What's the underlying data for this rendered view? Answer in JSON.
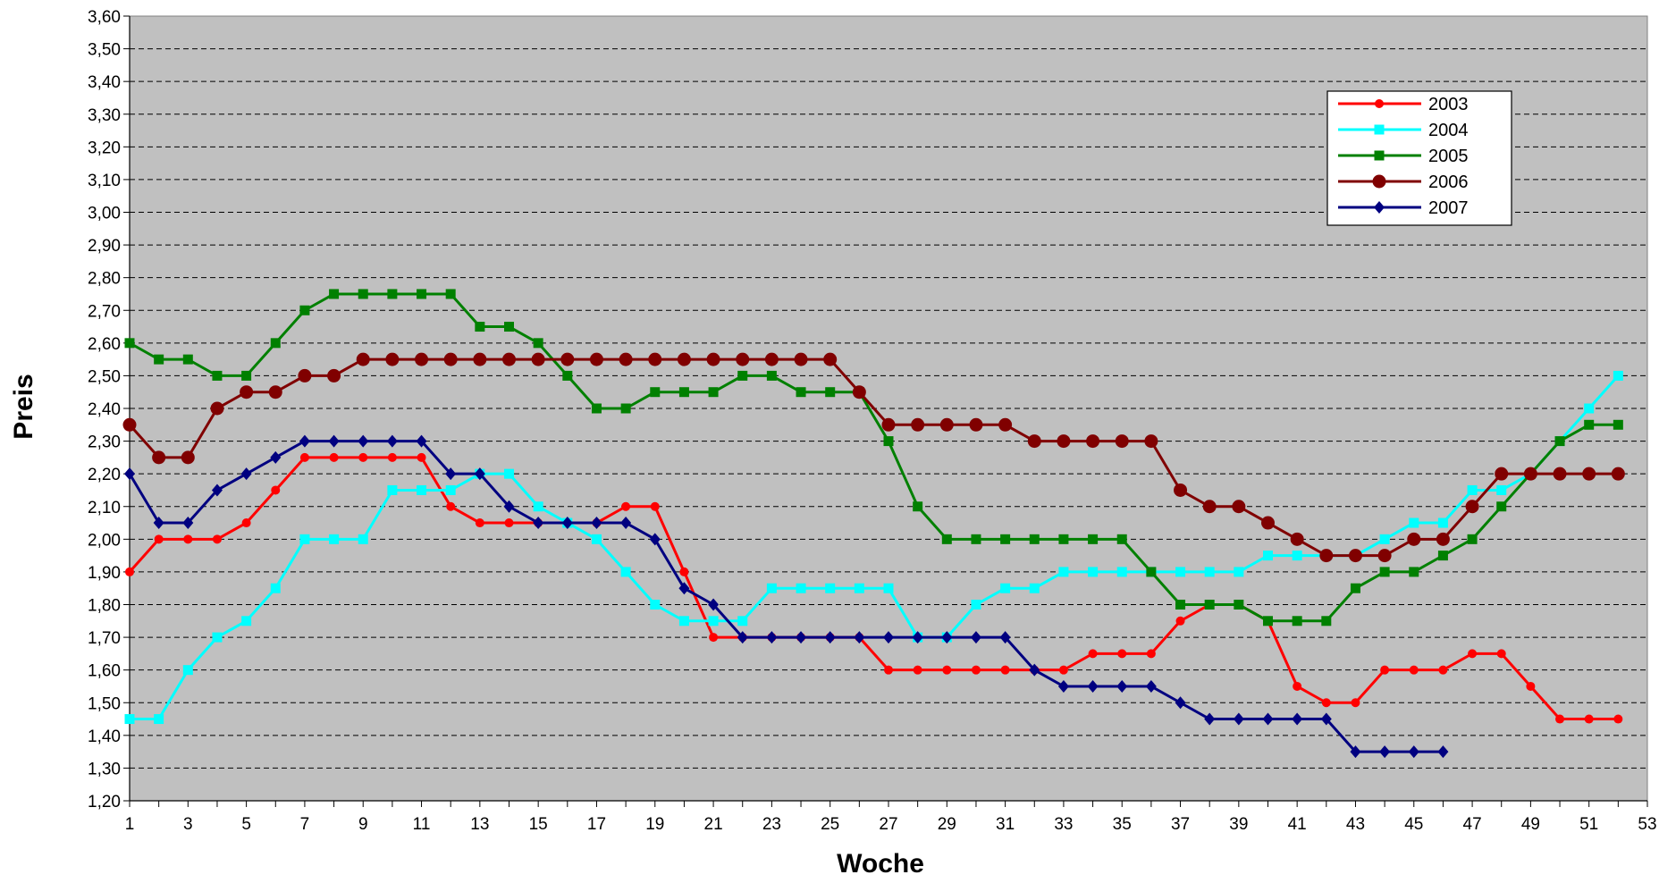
{
  "chart_data": {
    "type": "line",
    "xlabel": "Woche",
    "ylabel": "Preis",
    "xlim": [
      1,
      53
    ],
    "ylim": [
      1.2,
      3.6
    ],
    "x_ticks": [
      "1",
      "3",
      "5",
      "7",
      "9",
      "11",
      "13",
      "15",
      "17",
      "19",
      "21",
      "23",
      "25",
      "27",
      "29",
      "31",
      "33",
      "35",
      "37",
      "39",
      "41",
      "43",
      "45",
      "47",
      "49",
      "51",
      "53"
    ],
    "y_ticks": [
      "1,20",
      "1,30",
      "1,40",
      "1,50",
      "1,60",
      "1,70",
      "1,80",
      "1,90",
      "2,00",
      "2,10",
      "2,20",
      "2,30",
      "2,40",
      "2,50",
      "2,60",
      "2,70",
      "2,80",
      "2,90",
      "3,00",
      "3,10",
      "3,20",
      "3,30",
      "3,40",
      "3,50",
      "3,60"
    ],
    "grid": "horizontal dashed",
    "plot_background": "#c0c0c0",
    "legend_position": "top-right",
    "series": [
      {
        "name": "2003",
        "color": "#ff0000",
        "marker": "circle",
        "values": [
          1.9,
          2.0,
          2.0,
          2.0,
          2.05,
          2.15,
          2.25,
          2.25,
          2.25,
          2.25,
          2.25,
          2.1,
          2.05,
          2.05,
          2.05,
          2.05,
          2.05,
          2.1,
          2.1,
          1.9,
          1.7,
          1.7,
          1.7,
          1.7,
          1.7,
          1.7,
          1.6,
          1.6,
          1.6,
          1.6,
          1.6,
          1.6,
          1.6,
          1.65,
          1.65,
          1.65,
          1.75,
          1.8,
          1.8,
          1.75,
          1.55,
          1.5,
          1.5,
          1.6,
          1.6,
          1.6,
          1.65,
          1.65,
          1.55,
          1.45,
          1.45,
          1.45
        ]
      },
      {
        "name": "2004",
        "color": "#00ffff",
        "marker": "square",
        "values": [
          1.45,
          1.45,
          1.6,
          1.7,
          1.75,
          1.85,
          2.0,
          2.0,
          2.0,
          2.15,
          2.15,
          2.15,
          2.2,
          2.2,
          2.1,
          2.05,
          2.0,
          1.9,
          1.8,
          1.75,
          1.75,
          1.75,
          1.85,
          1.85,
          1.85,
          1.85,
          1.85,
          1.7,
          1.7,
          1.8,
          1.85,
          1.85,
          1.9,
          1.9,
          1.9,
          1.9,
          1.9,
          1.9,
          1.9,
          1.95,
          1.95,
          1.95,
          1.95,
          2.0,
          2.05,
          2.05,
          2.15,
          2.15,
          2.2,
          2.3,
          2.4,
          2.5
        ]
      },
      {
        "name": "2005",
        "color": "#008000",
        "marker": "square",
        "values": [
          2.6,
          2.55,
          2.55,
          2.5,
          2.5,
          2.6,
          2.7,
          2.75,
          2.75,
          2.75,
          2.75,
          2.75,
          2.65,
          2.65,
          2.6,
          2.5,
          2.4,
          2.4,
          2.45,
          2.45,
          2.45,
          2.5,
          2.5,
          2.45,
          2.45,
          2.45,
          2.3,
          2.1,
          2.0,
          2.0,
          2.0,
          2.0,
          2.0,
          2.0,
          2.0,
          1.9,
          1.8,
          1.8,
          1.8,
          1.75,
          1.75,
          1.75,
          1.85,
          1.9,
          1.9,
          1.95,
          2.0,
          2.1,
          2.2,
          2.3,
          2.35,
          2.35
        ]
      },
      {
        "name": "2006",
        "color": "#800000",
        "marker": "circle-large",
        "values": [
          2.35,
          2.25,
          2.25,
          2.4,
          2.45,
          2.45,
          2.5,
          2.5,
          2.55,
          2.55,
          2.55,
          2.55,
          2.55,
          2.55,
          2.55,
          2.55,
          2.55,
          2.55,
          2.55,
          2.55,
          2.55,
          2.55,
          2.55,
          2.55,
          2.55,
          2.45,
          2.35,
          2.35,
          2.35,
          2.35,
          2.35,
          2.3,
          2.3,
          2.3,
          2.3,
          2.3,
          2.15,
          2.1,
          2.1,
          2.05,
          2.0,
          1.95,
          1.95,
          1.95,
          2.0,
          2.0,
          2.1,
          2.2,
          2.2,
          2.2,
          2.2,
          2.2
        ]
      },
      {
        "name": "2007",
        "color": "#000080",
        "marker": "diamond",
        "values": [
          2.2,
          2.05,
          2.05,
          2.15,
          2.2,
          2.25,
          2.3,
          2.3,
          2.3,
          2.3,
          2.3,
          2.2,
          2.2,
          2.1,
          2.05,
          2.05,
          2.05,
          2.05,
          2.0,
          1.85,
          1.8,
          1.7,
          1.7,
          1.7,
          1.7,
          1.7,
          1.7,
          1.7,
          1.7,
          1.7,
          1.7,
          1.6,
          1.55,
          1.55,
          1.55,
          1.55,
          1.5,
          1.45,
          1.45,
          1.45,
          1.45,
          1.45,
          1.35,
          1.35,
          1.35,
          1.35
        ]
      }
    ]
  }
}
